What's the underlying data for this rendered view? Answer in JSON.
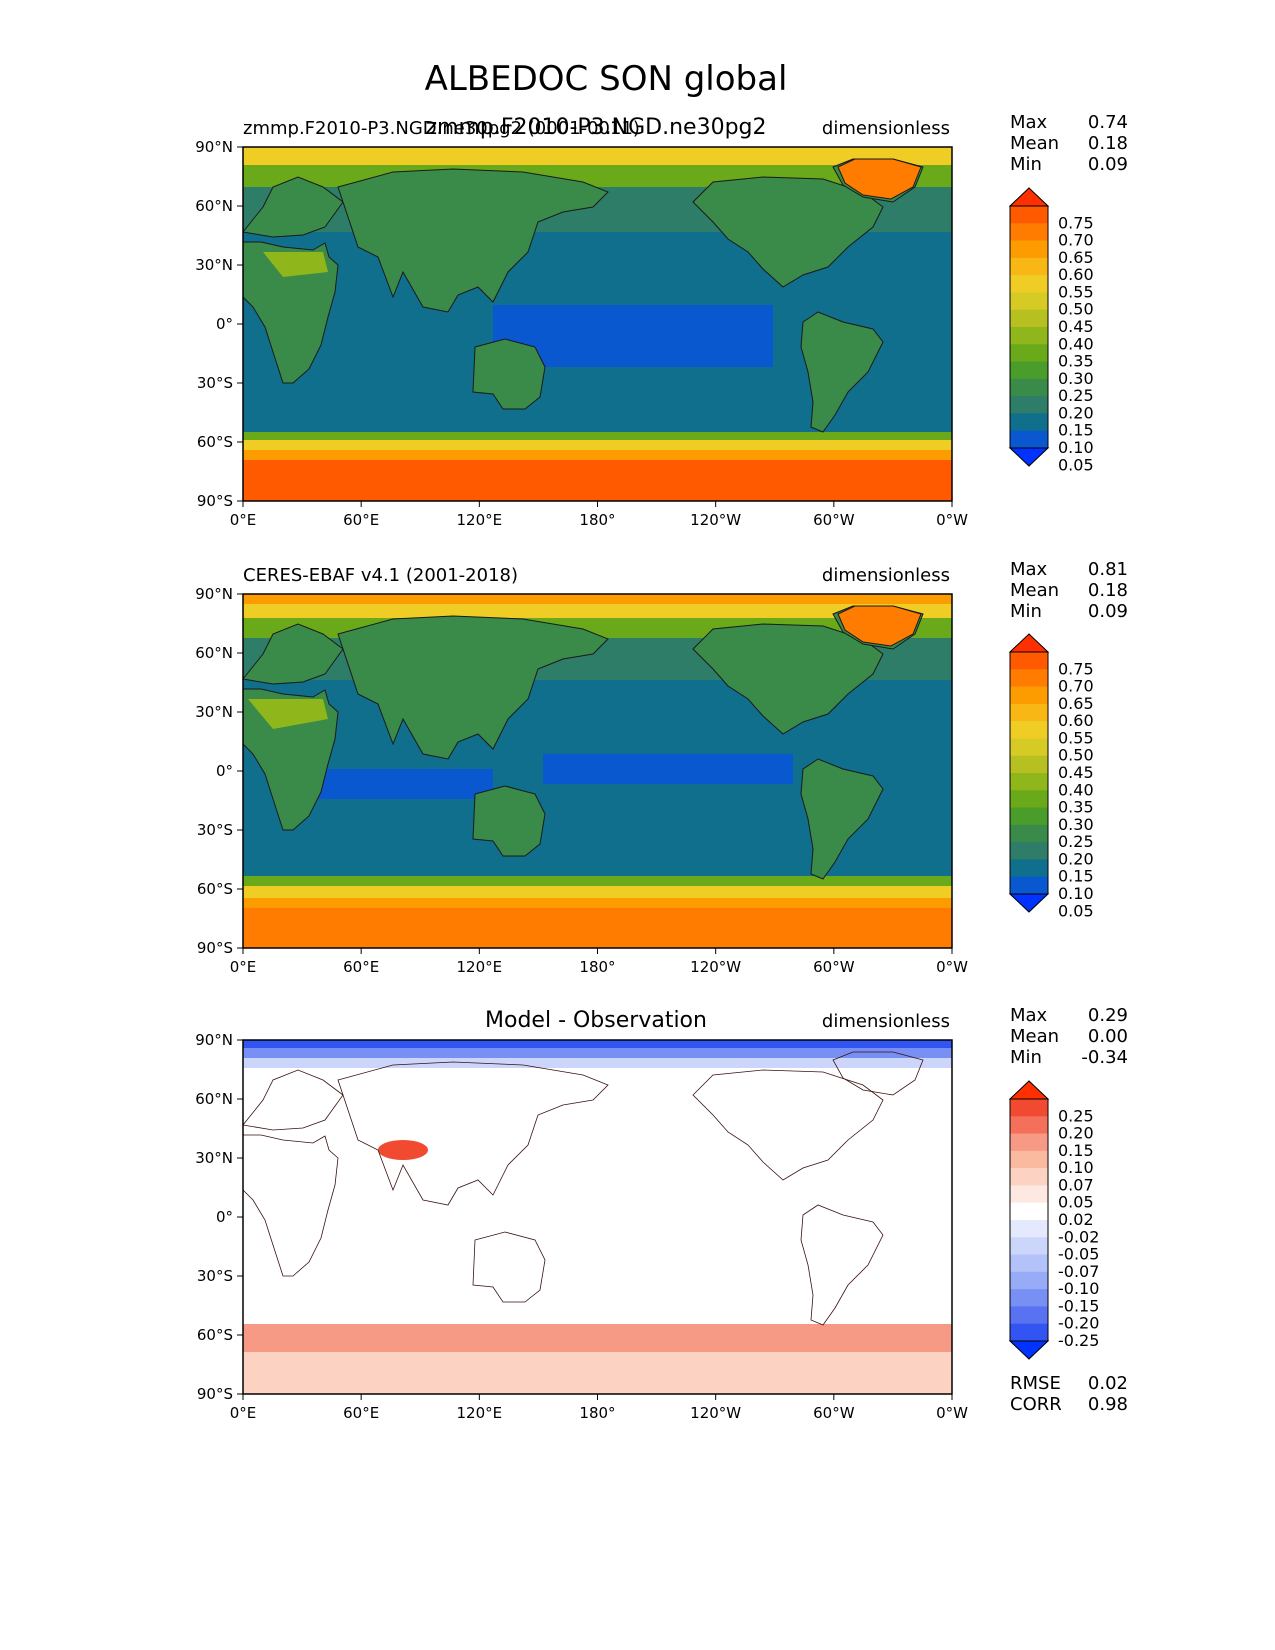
{
  "figure": {
    "title": "ALBEDOC SON global"
  },
  "panels": [
    {
      "id": "test",
      "title_left": "zmmp.F2010-P3.NGD.ne30pg2 (0001-0011)",
      "title_center": "zmmp.F2010-P3.NGD.ne30pg2",
      "units": "dimensionless",
      "stats": {
        "max_label": "Max",
        "max": "0.74",
        "mean_label": "Mean",
        "mean": "0.18",
        "min_label": "Min",
        "min": "0.09"
      }
    },
    {
      "id": "reference",
      "title_left": "CERES-EBAF v4.1 (2001-2018)",
      "title_center": "",
      "units": "dimensionless",
      "stats": {
        "max_label": "Max",
        "max": "0.81",
        "mean_label": "Mean",
        "mean": "0.18",
        "min_label": "Min",
        "min": "0.09"
      }
    },
    {
      "id": "diff",
      "title_left": "",
      "title_center": "Model - Observation",
      "units": "dimensionless",
      "stats": {
        "max_label": "Max",
        "max": "0.29",
        "mean_label": "Mean",
        "mean": "0.00",
        "min_label": "Min",
        "min": "-0.34"
      },
      "metrics": {
        "rmse_label": "RMSE",
        "rmse": "0.02",
        "corr_label": "CORR",
        "corr": "0.98"
      }
    }
  ],
  "axes": {
    "yticks": [
      "90°N",
      "60°N",
      "30°N",
      "0°",
      "30°S",
      "60°S",
      "90°S"
    ],
    "xticks": [
      "0°E",
      "60°E",
      "120°E",
      "180°",
      "120°W",
      "60°W",
      "0°W"
    ]
  },
  "colorbars": {
    "field": {
      "labels": [
        "0.75",
        "0.70",
        "0.65",
        "0.60",
        "0.55",
        "0.50",
        "0.45",
        "0.40",
        "0.35",
        "0.30",
        "0.25",
        "0.20",
        "0.15",
        "0.10",
        "0.05"
      ],
      "colors": [
        "#ff3000",
        "#ff5a00",
        "#ff7c00",
        "#fc9c00",
        "#f8b714",
        "#f0cd25",
        "#d6ca24",
        "#b6c020",
        "#8fb61a",
        "#6aaa1a",
        "#4a9d2a",
        "#3a8a4a",
        "#2e7d68",
        "#0f6f8c",
        "#0a58d0",
        "#0033ff"
      ]
    },
    "diff": {
      "labels": [
        "0.25",
        "0.20",
        "0.15",
        "0.10",
        "0.07",
        "0.05",
        "0.02",
        "-0.02",
        "-0.05",
        "-0.07",
        "-0.10",
        "-0.15",
        "-0.20",
        "-0.25"
      ],
      "colors": [
        "#ff3000",
        "#f24a30",
        "#f4705a",
        "#f79a85",
        "#faba9f",
        "#fcd3c3",
        "#fde9e2",
        "#ffffff",
        "#e4e9fd",
        "#ccd6fb",
        "#b3c2f9",
        "#97abf6",
        "#7890f3",
        "#5872f1",
        "#3254f0",
        "#0033ff"
      ]
    }
  },
  "chart_data": [
    {
      "type": "heatmap",
      "title": "zmmp.F2010-P3.NGD.ne30pg2 (0001-0011)",
      "units": "dimensionless",
      "xlabel": "",
      "ylabel": "",
      "xlim": [
        0,
        360
      ],
      "ylim": [
        -90,
        90
      ],
      "zonal_profile": {
        "lat": [
          -90,
          -75,
          -65,
          -60,
          -55,
          -45,
          -30,
          -15,
          -5,
          0,
          5,
          15,
          30,
          45,
          55,
          65,
          75,
          85,
          90
        ],
        "value": [
          0.68,
          0.68,
          0.65,
          0.45,
          0.25,
          0.13,
          0.12,
          0.12,
          0.1,
          0.12,
          0.1,
          0.12,
          0.12,
          0.14,
          0.2,
          0.3,
          0.38,
          0.48,
          0.5
        ]
      },
      "stats": {
        "max": 0.74,
        "mean": 0.18,
        "min": 0.09
      }
    },
    {
      "type": "heatmap",
      "title": "CERES-EBAF v4.1 (2001-2018)",
      "units": "dimensionless",
      "xlim": [
        0,
        360
      ],
      "ylim": [
        -90,
        90
      ],
      "zonal_profile": {
        "lat": [
          -90,
          -75,
          -65,
          -60,
          -55,
          -45,
          -30,
          -15,
          -5,
          0,
          5,
          15,
          30,
          45,
          55,
          65,
          75,
          85,
          90
        ],
        "value": [
          0.62,
          0.62,
          0.6,
          0.45,
          0.25,
          0.13,
          0.12,
          0.12,
          0.1,
          0.12,
          0.1,
          0.12,
          0.12,
          0.14,
          0.2,
          0.3,
          0.4,
          0.52,
          0.65
        ]
      },
      "stats": {
        "max": 0.81,
        "mean": 0.18,
        "min": 0.09
      }
    },
    {
      "type": "heatmap",
      "title": "Model - Observation",
      "units": "dimensionless",
      "xlim": [
        0,
        360
      ],
      "ylim": [
        -90,
        90
      ],
      "zonal_profile": {
        "lat": [
          -90,
          -75,
          -65,
          -60,
          -55,
          -45,
          0,
          45,
          60,
          75,
          85,
          90
        ],
        "value": [
          0.03,
          0.03,
          0.05,
          0.1,
          0.08,
          0.0,
          0.0,
          0.0,
          0.0,
          -0.03,
          -0.08,
          -0.15
        ]
      },
      "stats": {
        "max": 0.29,
        "mean": 0.0,
        "min": -0.34
      },
      "rmse": 0.02,
      "corr": 0.98
    }
  ]
}
